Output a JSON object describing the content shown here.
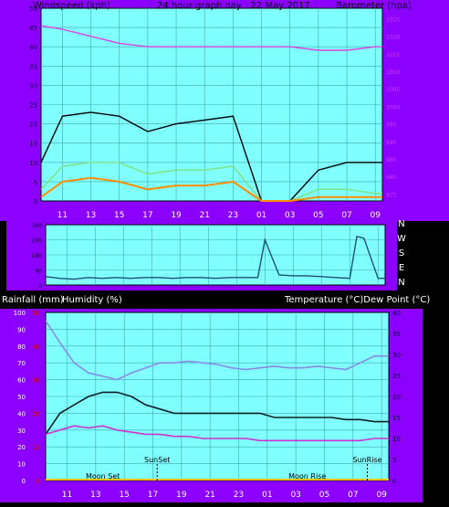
{
  "colors": {
    "frame": "#8B00FF",
    "plot_bg": "#80FFFF",
    "grid": "#40A8B0",
    "wind_gust": "#000000",
    "wind_avg": "#7FE07F",
    "wind_low": "#FF8C00",
    "barometer": "#E040E0",
    "direction": "#1F4E79",
    "humidity": "#8A8AE6",
    "temperature": "#102020",
    "dew_point": "#D030D0",
    "rain_scale": "#D00000",
    "time_marker": "#000000"
  },
  "chart_data": [
    {
      "type": "line",
      "id": "wind_baro",
      "title": "24 hour graph day : 22 May 2017",
      "left_title": "Windspeed (kph)",
      "right_title": "Barometer (hpa)",
      "x_ticks": [
        "11",
        "13",
        "15",
        "17",
        "19",
        "21",
        "23",
        "01",
        "03",
        "05",
        "07",
        "09"
      ],
      "x_range": [
        9.5,
        33.5
      ],
      "y_left_range": [
        0,
        50
      ],
      "y_left_ticks": [
        "0",
        "5",
        "10",
        "15",
        "20",
        "25",
        "30",
        "35",
        "40",
        "45",
        "50"
      ],
      "y_right_range": [
        973,
        1028
      ],
      "y_right_ticks": [
        "975",
        "980",
        "985",
        "990",
        "995",
        "1000",
        "1005",
        "1010",
        "1015",
        "1020",
        "1025"
      ],
      "series": [
        {
          "axis": "left",
          "x": [
            9.5,
            11,
            13,
            15,
            17,
            19,
            21,
            23,
            25,
            27,
            29,
            31,
            33,
            33.5
          ],
          "y": [
            10,
            22,
            23,
            22,
            18,
            20,
            21,
            22,
            0,
            0,
            8,
            10,
            10,
            10
          ]
        },
        {
          "axis": "left",
          "x": [
            9.5,
            11,
            13,
            15,
            17,
            19,
            21,
            23,
            25,
            27,
            29,
            31,
            33,
            33.5
          ],
          "y": [
            3,
            9,
            10,
            10,
            7,
            8,
            8,
            9,
            0,
            0,
            3,
            3,
            2,
            2
          ]
        },
        {
          "axis": "left",
          "x": [
            9.5,
            11,
            13,
            15,
            17,
            19,
            21,
            23,
            25,
            27,
            29,
            31,
            33,
            33.5
          ],
          "y": [
            1,
            5,
            6,
            5,
            3,
            4,
            4,
            5,
            0,
            0,
            1,
            1,
            1,
            1
          ]
        },
        {
          "axis": "right",
          "x": [
            9.5,
            11,
            13,
            15,
            17,
            19,
            21,
            23,
            25,
            27,
            29,
            31,
            33,
            33.5
          ],
          "y": [
            1023,
            1022,
            1020,
            1018,
            1017,
            1017,
            1017,
            1017,
            1017,
            1017,
            1016,
            1016,
            1017,
            1017
          ]
        }
      ]
    },
    {
      "type": "line",
      "id": "direction",
      "side_labels": [
        "N",
        "W",
        "S",
        "E",
        "N"
      ],
      "x_range": [
        9.5,
        33.5
      ],
      "y_range": [
        0,
        360
      ],
      "y_ticks": [
        "0",
        "90",
        "180",
        "270",
        "360"
      ],
      "series": [
        {
          "x": [
            9.5,
            10.5,
            11.5,
            12.5,
            13.5,
            14.5,
            15.5,
            16.5,
            17.5,
            18.5,
            19.5,
            20.5,
            21.5,
            22.5,
            23.5,
            24.5,
            25,
            26,
            27,
            28,
            29,
            30,
            31,
            31.5,
            32,
            33,
            33.5
          ],
          "y": [
            50,
            40,
            35,
            45,
            40,
            45,
            40,
            45,
            45,
            40,
            45,
            45,
            40,
            45,
            45,
            45,
            270,
            60,
            55,
            55,
            50,
            45,
            40,
            290,
            280,
            40,
            40
          ]
        }
      ]
    },
    {
      "type": "line",
      "id": "temp_hum",
      "left_title_rain": "Rainfall (mm)",
      "left_title_hum": "Humidity (%)",
      "right_title": "Temperature (°C)Dew Point (°C)",
      "x_ticks": [
        "11",
        "13",
        "15",
        "17",
        "19",
        "21",
        "23",
        "01",
        "03",
        "05",
        "07",
        "09"
      ],
      "x_range": [
        9.5,
        33.5
      ],
      "humidity_range": [
        0,
        100
      ],
      "humidity_ticks": [
        "0",
        "10",
        "20",
        "30",
        "40",
        "50",
        "60",
        "70",
        "80",
        "90",
        "100"
      ],
      "rain_range": [
        0,
        50
      ],
      "rain_ticks": [
        "0",
        "10",
        "20",
        "30",
        "40",
        "50"
      ],
      "temp_range": [
        0,
        40
      ],
      "temp_ticks": [
        "0",
        "5",
        "10",
        "15",
        "20",
        "25",
        "30",
        "35",
        "40"
      ],
      "markers": [
        {
          "label": "SunSet",
          "x": 17.3
        },
        {
          "label": "SunRise",
          "x": 32.0
        },
        {
          "label": "Moon Set",
          "x": 13.5
        },
        {
          "label": "Moon Rise",
          "x": 27.8
        }
      ],
      "series": [
        {
          "axis": "humidity",
          "x": [
            9.5,
            10.5,
            11.5,
            12.5,
            13.5,
            14.5,
            15.5,
            16.5,
            17.5,
            18.5,
            19.5,
            20.5,
            21.5,
            22.5,
            23.5,
            24.5,
            25.5,
            26.5,
            27.5,
            28.5,
            29.5,
            30.5,
            31.5,
            32.5,
            33.5
          ],
          "y": [
            95,
            82,
            70,
            64,
            62,
            60,
            64,
            67,
            70,
            70,
            71,
            70,
            69,
            67,
            66,
            67,
            68,
            67,
            67,
            68,
            67,
            66,
            70,
            74,
            74
          ]
        },
        {
          "axis": "temp",
          "x": [
            9.5,
            10.5,
            11.5,
            12.5,
            13.5,
            14.5,
            15.5,
            16.5,
            17.5,
            18.5,
            19.5,
            20.5,
            21.5,
            22.5,
            23.5,
            24.5,
            25.5,
            26.5,
            27.5,
            28.5,
            29.5,
            30.5,
            31.5,
            32.5,
            33.5
          ],
          "y": [
            11,
            16,
            18,
            20,
            21,
            21,
            20,
            18,
            17,
            16,
            16,
            16,
            16,
            16,
            16,
            16,
            15,
            15,
            15,
            15,
            15,
            14.5,
            14.5,
            14,
            14
          ]
        },
        {
          "axis": "temp",
          "x": [
            9.5,
            10.5,
            11.5,
            12.5,
            13.5,
            14.5,
            15.5,
            16.5,
            17.5,
            18.5,
            19.5,
            20.5,
            21.5,
            22.5,
            23.5,
            24.5,
            25.5,
            26.5,
            27.5,
            28.5,
            29.5,
            30.5,
            31.5,
            32.5,
            33.5
          ],
          "y": [
            11,
            12,
            13,
            12.5,
            13,
            12,
            11.5,
            11,
            11,
            10.5,
            10.5,
            10,
            10,
            10,
            10,
            9.5,
            9.5,
            9.5,
            9.5,
            9.5,
            9.5,
            9.5,
            9.5,
            10,
            10
          ]
        }
      ]
    }
  ]
}
